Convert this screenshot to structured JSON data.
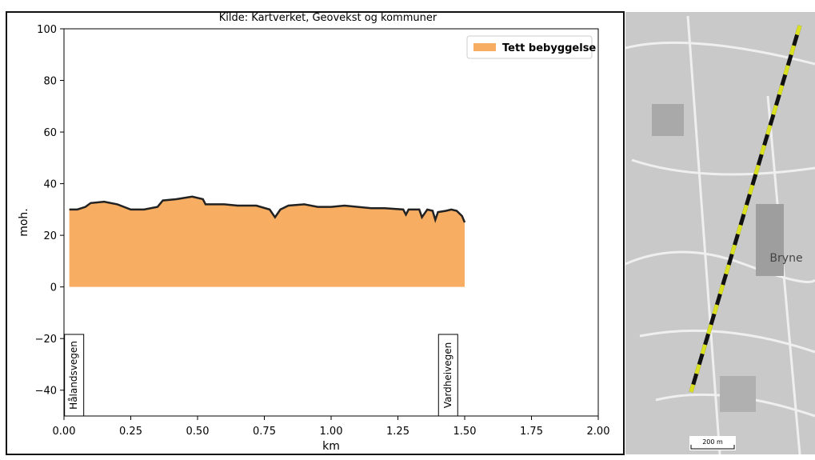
{
  "chart_data": {
    "type": "area",
    "title": "Kilde: Kartverket, Geovekst og kommuner",
    "x_label": "km",
    "y_label": "moh.",
    "x": [
      0.02,
      0.05,
      0.08,
      0.1,
      0.15,
      0.2,
      0.25,
      0.3,
      0.35,
      0.37,
      0.42,
      0.48,
      0.52,
      0.53,
      0.6,
      0.65,
      0.72,
      0.77,
      0.79,
      0.81,
      0.84,
      0.9,
      0.95,
      1.0,
      1.05,
      1.1,
      1.15,
      1.2,
      1.27,
      1.28,
      1.29,
      1.33,
      1.34,
      1.36,
      1.38,
      1.39,
      1.4,
      1.43,
      1.45,
      1.47,
      1.49,
      1.5
    ],
    "series": [
      {
        "name": "Tett bebyggelse",
        "color": "#f7ad62",
        "values": [
          30,
          30,
          31,
          32.5,
          33,
          32,
          30,
          30,
          31,
          33.5,
          34,
          35,
          34,
          32,
          32,
          31.5,
          31.5,
          30,
          27,
          30,
          31.5,
          32,
          31,
          31,
          31.5,
          31,
          30.5,
          30.5,
          30,
          28,
          30,
          30,
          27,
          30,
          29.5,
          26,
          29,
          29.5,
          30,
          29.5,
          27.5,
          25
        ]
      }
    ],
    "xlim": [
      0,
      2
    ],
    "ylim": [
      -50,
      100
    ],
    "xticks": [
      {
        "value": 0,
        "label": "0.00"
      },
      {
        "value": 0.25,
        "label": "0.25"
      },
      {
        "value": 0.5,
        "label": "0.50"
      },
      {
        "value": 0.75,
        "label": "0.75"
      },
      {
        "value": 1,
        "label": "1.00"
      },
      {
        "value": 1.25,
        "label": "1.25"
      },
      {
        "value": 1.5,
        "label": "1.50"
      },
      {
        "value": 1.75,
        "label": "1.75"
      },
      {
        "value": 2,
        "label": "2.00"
      }
    ],
    "yticks": [
      {
        "value": -40,
        "label": "−40"
      },
      {
        "value": -20,
        "label": "−20"
      },
      0,
      20,
      40,
      60,
      80,
      100
    ],
    "legend": "upper right",
    "grid": false,
    "annotations": [
      {
        "text": "Hålandsvegen",
        "x": 0.02
      },
      {
        "text": "Vardheivegen",
        "x": 1.42
      }
    ]
  },
  "map": {
    "place": "Bryne",
    "scale": "200 m"
  }
}
